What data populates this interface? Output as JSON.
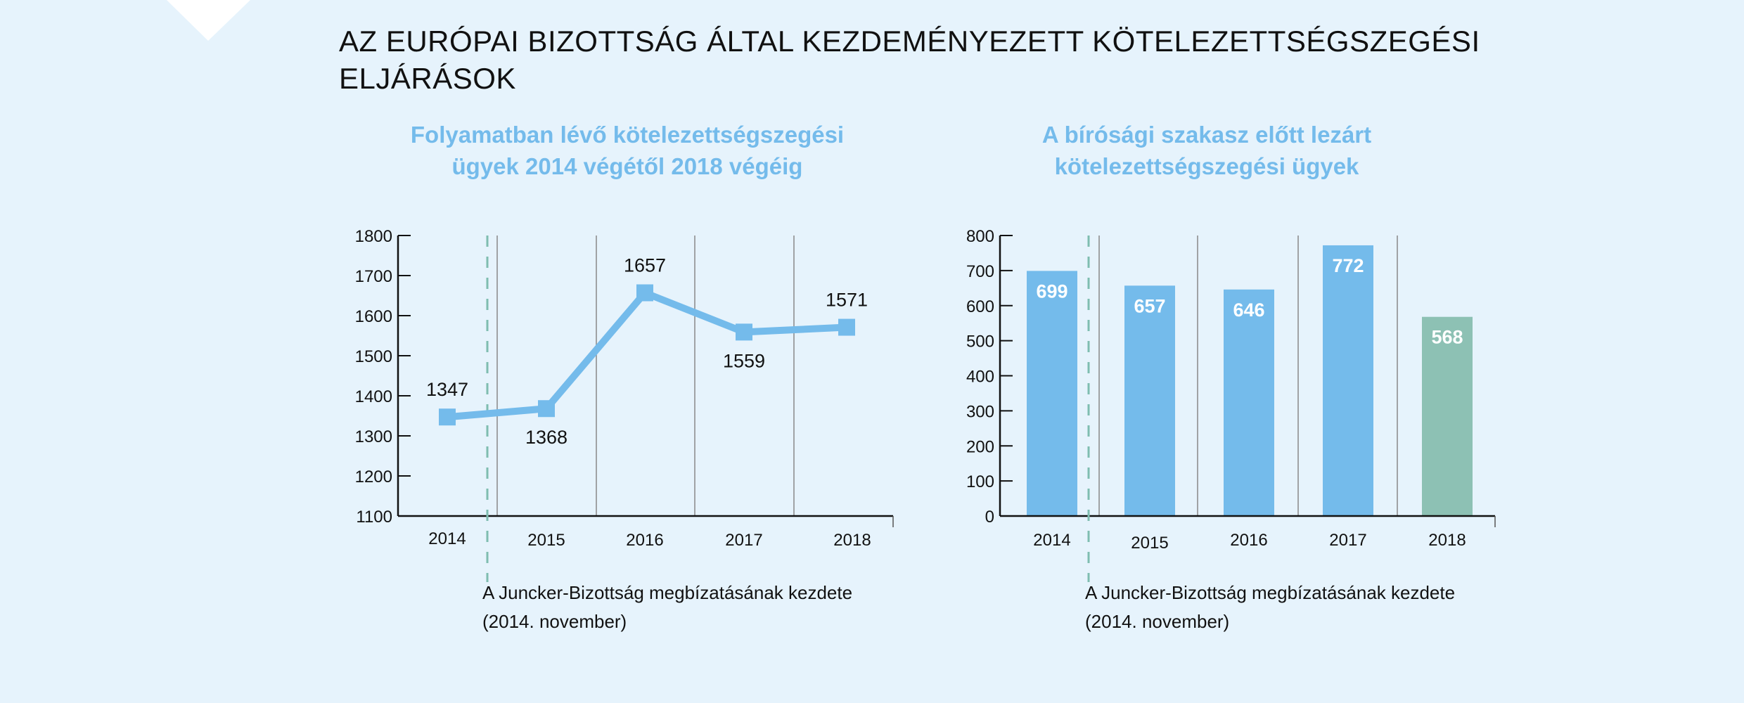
{
  "page": {
    "title_lines": [
      "AZ EURÓPAI BIZOTTSÁG ÁLTAL KEZDEMÉNYEZETT KÖTELEZETTSÉGSZEGÉSI",
      "ELJÁRÁSOK"
    ],
    "background": "#E6F3FC"
  },
  "chart_data": [
    {
      "type": "line",
      "title_lines": [
        "Folyamatban lévő kötelezettségszegési",
        "ügyek 2014 végétől 2018 végéig"
      ],
      "categories": [
        "2014",
        "2015",
        "2016",
        "2017",
        "2018"
      ],
      "values": [
        1347,
        1368,
        1657,
        1559,
        1571
      ],
      "label_positions": [
        "above",
        "below",
        "above",
        "below",
        "above"
      ],
      "ylim": [
        1100,
        1800
      ],
      "yticks": [
        "1100",
        "1200",
        "1300",
        "1400",
        "1500",
        "1600",
        "1700",
        "1800"
      ],
      "color": "#74BBEB",
      "annotation": {
        "lines": [
          "A Juncker-Bizottság megbízatásának kezdete",
          "(2014. november)"
        ],
        "color": "#7FBDB0"
      }
    },
    {
      "type": "bar",
      "title_lines": [
        "A bírósági szakasz előtt lezárt",
        "kötelezettségszegési ügyek"
      ],
      "categories": [
        "2014",
        "2015",
        "2016",
        "2017",
        "2018"
      ],
      "values": [
        699,
        657,
        646,
        772,
        568
      ],
      "bar_colors": [
        "#74BBEB",
        "#74BBEB",
        "#74BBEB",
        "#74BBEB",
        "#8DC1B4"
      ],
      "ylim": [
        0,
        800
      ],
      "yticks": [
        "0",
        "100",
        "200",
        "300",
        "400",
        "500",
        "600",
        "700",
        "800"
      ],
      "annotation": {
        "lines": [
          "A Juncker-Bizottság megbízatásának kezdete",
          "(2014. november)"
        ],
        "color": "#7FBDB0"
      }
    }
  ]
}
